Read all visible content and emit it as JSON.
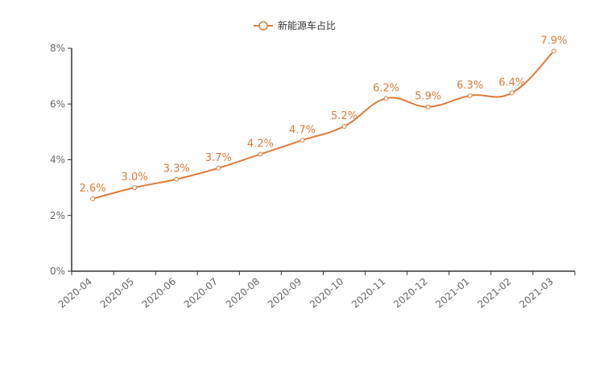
{
  "chart_data": {
    "type": "line",
    "title": "",
    "xlabel": "",
    "ylabel": "",
    "categories": [
      "2020-04",
      "2020-05",
      "2020-06",
      "2020-07",
      "2020-08",
      "2020-09",
      "2020-10",
      "2020-11",
      "2020-12",
      "2021-01",
      "2021-02",
      "2021-03"
    ],
    "series": [
      {
        "name": "新能源车占比",
        "values": [
          2.6,
          3.0,
          3.3,
          3.7,
          4.2,
          4.7,
          5.2,
          6.2,
          5.9,
          6.3,
          6.4,
          7.9
        ],
        "labels": [
          "2.6%",
          "3.0%",
          "3.3%",
          "3.7%",
          "4.2%",
          "4.7%",
          "5.2%",
          "6.2%",
          "5.9%",
          "6.3%",
          "6.4%",
          "7.9%"
        ],
        "color": "#e07b39"
      }
    ],
    "ylim": [
      0,
      8
    ],
    "yticks": [
      "0%",
      "2%",
      "4%",
      "6%",
      "8%"
    ],
    "ytick_values": [
      0,
      2,
      4,
      6,
      8
    ],
    "grid": false,
    "legend_position": "top-center",
    "smooth": true,
    "axis_color": "#333333"
  }
}
